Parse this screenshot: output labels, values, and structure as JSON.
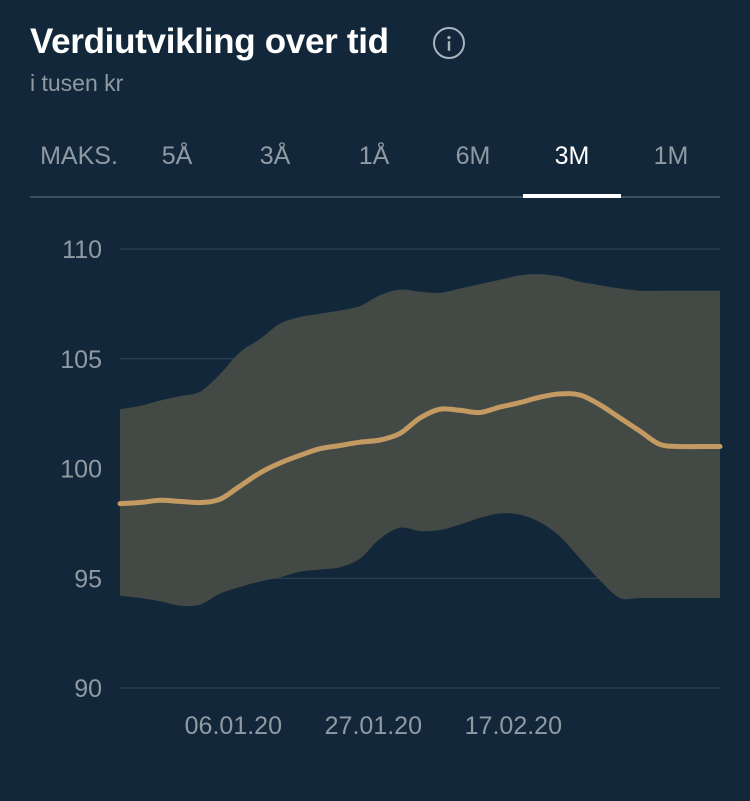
{
  "header": {
    "title": "Verdiutvikling over tid",
    "subtitle": "i tusen kr",
    "info_icon": "info-icon"
  },
  "tabs": [
    {
      "label": "MAKS.",
      "active": false
    },
    {
      "label": "5Å",
      "active": false
    },
    {
      "label": "3Å",
      "active": false
    },
    {
      "label": "1Å",
      "active": false
    },
    {
      "label": "6M",
      "active": false
    },
    {
      "label": "3M",
      "active": true
    },
    {
      "label": "1M",
      "active": false
    }
  ],
  "colors": {
    "background": "#12283a",
    "line": "#c49a63",
    "band": "#434944",
    "grid": "#34495a",
    "tab_active": "#ffffff",
    "muted_text": "#8f9aa3"
  },
  "chart_data": {
    "type": "area",
    "ylim": [
      90,
      110
    ],
    "yticks": [
      110,
      105,
      100,
      95,
      90
    ],
    "x_tick_labels": [
      "06.01.20",
      "27.01.20",
      "17.02.20"
    ],
    "x_ticks": [
      "2020-01-06",
      "2020-01-27",
      "2020-02-17"
    ],
    "grid": true,
    "x": [
      "2019-12-20",
      "2019-12-23",
      "2019-12-26",
      "2019-12-29",
      "2020-01-01",
      "2020-01-04",
      "2020-01-07",
      "2020-01-10",
      "2020-01-13",
      "2020-01-16",
      "2020-01-19",
      "2020-01-22",
      "2020-01-25",
      "2020-01-28",
      "2020-01-31",
      "2020-02-03",
      "2020-02-06",
      "2020-02-09",
      "2020-02-12",
      "2020-02-15",
      "2020-02-18",
      "2020-02-21",
      "2020-02-24",
      "2020-02-27",
      "2020-03-01",
      "2020-03-04",
      "2020-03-07",
      "2020-03-10",
      "2020-03-13",
      "2020-03-16",
      "2020-03-19"
    ],
    "series": [
      {
        "values": [
          98.4,
          98.45,
          98.55,
          98.5,
          98.45,
          98.6,
          99.2,
          99.8,
          100.25,
          100.6,
          100.9,
          101.05,
          101.2,
          101.3,
          101.6,
          102.3,
          102.7,
          102.65,
          102.55,
          102.8,
          103.0,
          103.25,
          103.4,
          103.35,
          102.9,
          102.3,
          101.7,
          101.1,
          101.0,
          101.0,
          101.0
        ]
      }
    ],
    "band": {
      "upper": [
        102.7,
        102.85,
        103.1,
        103.3,
        103.5,
        104.3,
        105.3,
        105.9,
        106.6,
        106.9,
        107.05,
        107.2,
        107.4,
        107.9,
        108.15,
        108.05,
        108.0,
        108.2,
        108.4,
        108.6,
        108.8,
        108.85,
        108.75,
        108.5,
        108.35,
        108.2,
        108.1,
        108.1,
        108.1,
        108.1,
        108.1
      ],
      "lower": [
        94.2,
        94.1,
        93.95,
        93.75,
        93.8,
        94.3,
        94.6,
        94.85,
        95.05,
        95.3,
        95.4,
        95.5,
        95.9,
        96.8,
        97.3,
        97.15,
        97.2,
        97.45,
        97.75,
        97.95,
        97.9,
        97.55,
        96.9,
        95.9,
        94.9,
        94.1,
        94.1,
        94.1,
        94.1,
        94.1,
        94.1
      ]
    }
  }
}
